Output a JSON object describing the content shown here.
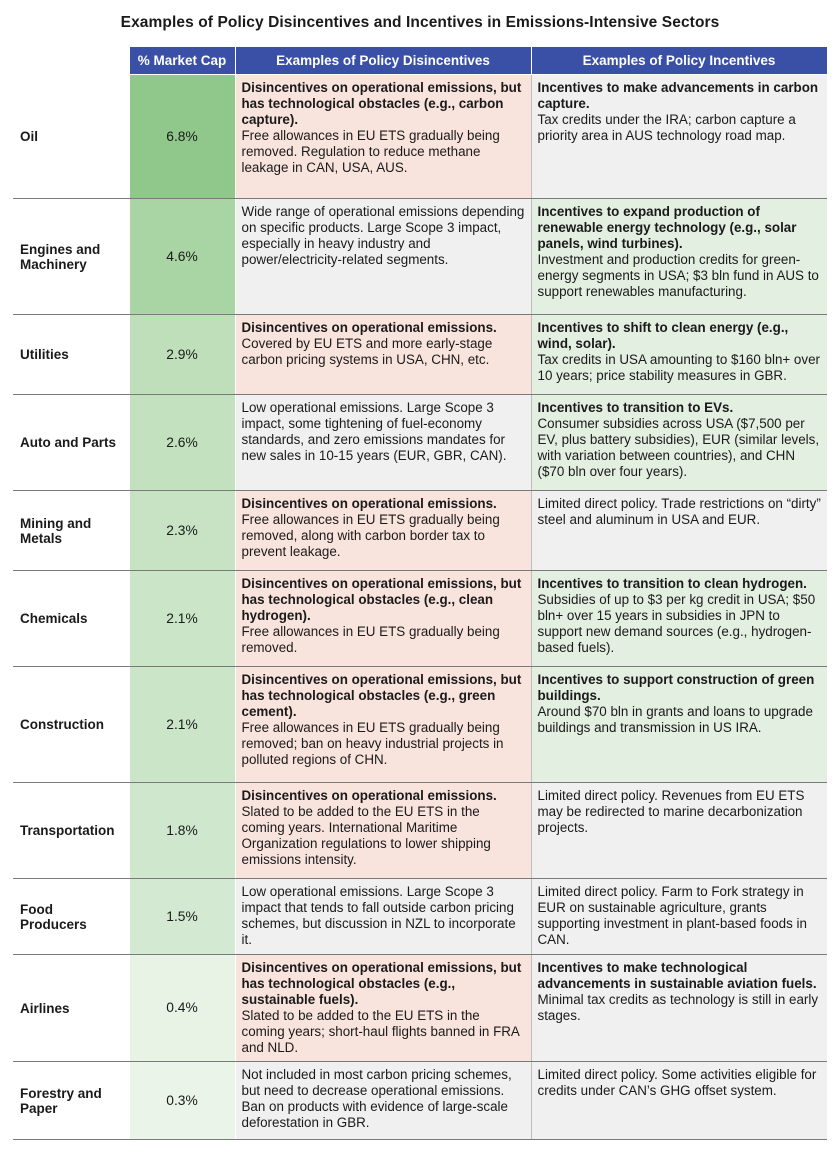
{
  "title": "Examples of Policy Disincentives and Incentives in Emissions-Intensive Sectors",
  "headers": {
    "market_cap": "% Market Cap",
    "disincentives": "Examples of Policy Disincentives",
    "incentives": "Examples of Policy Incentives"
  },
  "colors": {
    "header": "#3a4fa6",
    "disincentive_highlight": "#f8e4dc",
    "incentive_highlight": "#e3efe0",
    "neutral": "#f0f0f0",
    "cap_scale_high": "#8fc88a",
    "cap_scale_low": "#f4f9f2"
  },
  "rows": [
    {
      "sector": "Oil",
      "market_cap": "6.8%",
      "cap_value": 6.8,
      "dis": {
        "head": "Disincentives on operational emissions, but has technological obstacles (e.g., carbon capture).",
        "body": "Free allowances in EU ETS gradually being removed. Regulation to reduce methane leakage in CAN, USA, AUS.",
        "style": "pink"
      },
      "inc": {
        "head": "Incentives to make advancements in carbon capture.",
        "body": "Tax credits under the IRA; carbon capture a priority area in AUS technology road map.",
        "style": "grey"
      }
    },
    {
      "sector": "Engines and Machinery",
      "market_cap": "4.6%",
      "cap_value": 4.6,
      "dis": {
        "head": "",
        "body": "Wide range of operational emissions depending on specific products. Large Scope 3 impact, especially in heavy industry and power/electricity-related segments.",
        "style": "grey"
      },
      "inc": {
        "head": "Incentives to expand production of renewable energy technology (e.g., solar panels, wind turbines).",
        "body": "Investment and production credits for green-energy segments in USA; $3 bln fund in AUS to support renewables manufacturing.",
        "style": "green"
      }
    },
    {
      "sector": "Utilities",
      "market_cap": "2.9%",
      "cap_value": 2.9,
      "dis": {
        "head": "Disincentives on operational emissions.",
        "body": "Covered by EU ETS and more early-stage carbon pricing systems in USA, CHN, etc.",
        "style": "pink"
      },
      "inc": {
        "head": "Incentives to shift to clean energy (e.g., wind, solar).",
        "body": "Tax credits in USA amounting to $160 bln+ over 10 years; price stability measures in GBR.",
        "style": "green"
      }
    },
    {
      "sector": "Auto and Parts",
      "market_cap": "2.6%",
      "cap_value": 2.6,
      "dis": {
        "head": "",
        "body": "Low operational emissions. Large Scope 3 impact, some tightening of fuel-economy standards, and zero emissions mandates for new sales in 10-15 years (EUR, GBR, CAN).",
        "style": "grey"
      },
      "inc": {
        "head": "Incentives to transition to EVs.",
        "body": "Consumer subsidies across USA ($7,500 per EV, plus battery subsidies), EUR (similar levels, with variation between countries), and CHN ($70 bln over four years).",
        "style": "green"
      }
    },
    {
      "sector": "Mining and Metals",
      "market_cap": "2.3%",
      "cap_value": 2.3,
      "dis": {
        "head": "Disincentives on operational emissions.",
        "body": "Free allowances in EU ETS gradually being removed, along with carbon border tax to prevent leakage.",
        "style": "pink"
      },
      "inc": {
        "head": "",
        "body": "Limited direct policy. Trade restrictions on “dirty” steel and aluminum in USA and EUR.",
        "style": "grey"
      }
    },
    {
      "sector": "Chemicals",
      "market_cap": "2.1%",
      "cap_value": 2.1,
      "dis": {
        "head": "Disincentives on operational emissions, but has technological obstacles (e.g., clean hydrogen).",
        "body": "Free allowances in EU ETS gradually being removed.",
        "style": "pink"
      },
      "inc": {
        "head": "Incentives to transition to clean hydrogen.",
        "body": "Subsidies of up to $3 per kg credit in USA; $50 bln+ over 15 years in subsidies in JPN to support new demand sources (e.g., hydrogen-based fuels).",
        "style": "green"
      }
    },
    {
      "sector": "Construction",
      "market_cap": "2.1%",
      "cap_value": 2.1,
      "dis": {
        "head": "Disincentives on operational emissions, but has technological obstacles (e.g., green cement).",
        "body": "Free allowances in EU ETS gradually being removed; ban on heavy industrial projects in polluted regions of CHN.",
        "style": "pink"
      },
      "inc": {
        "head": "Incentives to support construction of green buildings.",
        "body": "Around $70 bln in grants and loans to upgrade buildings and transmission in US IRA.",
        "style": "green"
      }
    },
    {
      "sector": "Transportation",
      "market_cap": "1.8%",
      "cap_value": 1.8,
      "dis": {
        "head": "Disincentives on operational emissions.",
        "body": "Slated to be added to the EU ETS in the coming years. International Maritime Organization regulations to lower shipping emissions intensity.",
        "style": "pink"
      },
      "inc": {
        "head": "",
        "body": "Limited direct policy. Revenues from EU ETS may be redirected to marine decarbonization projects.",
        "style": "grey"
      }
    },
    {
      "sector": "Food Producers",
      "market_cap": "1.5%",
      "cap_value": 1.5,
      "dis": {
        "head": "",
        "body": "Low operational emissions. Large Scope 3 impact that tends to fall outside carbon pricing schemes, but discussion in NZL to incorporate it.",
        "style": "grey"
      },
      "inc": {
        "head": "",
        "body": "Limited direct policy. Farm to Fork strategy in EUR on sustainable agriculture, grants supporting investment in plant-based foods in CAN.",
        "style": "grey"
      }
    },
    {
      "sector": "Airlines",
      "market_cap": "0.4%",
      "cap_value": 0.4,
      "dis": {
        "head": "Disincentives on operational emissions, but has technological obstacles (e.g., sustainable fuels).",
        "body": "Slated to be added to the EU ETS in the coming years; short-haul flights banned in FRA and NLD.",
        "style": "pink"
      },
      "inc": {
        "head": "Incentives to make technological advancements in sustainable aviation fuels.",
        "body": "Minimal tax credits as technology is still in early stages.",
        "style": "grey"
      }
    },
    {
      "sector": "Forestry and Paper",
      "market_cap": "0.3%",
      "cap_value": 0.3,
      "dis": {
        "head": "",
        "body": "Not included in most carbon pricing schemes, but need to decrease operational emissions. Ban on products with evidence of large-scale deforestation in GBR.",
        "style": "grey"
      },
      "inc": {
        "head": "",
        "body": "Limited direct policy. Some activities eligible for credits under CAN’s GHG offset system.",
        "style": "grey"
      }
    }
  ]
}
